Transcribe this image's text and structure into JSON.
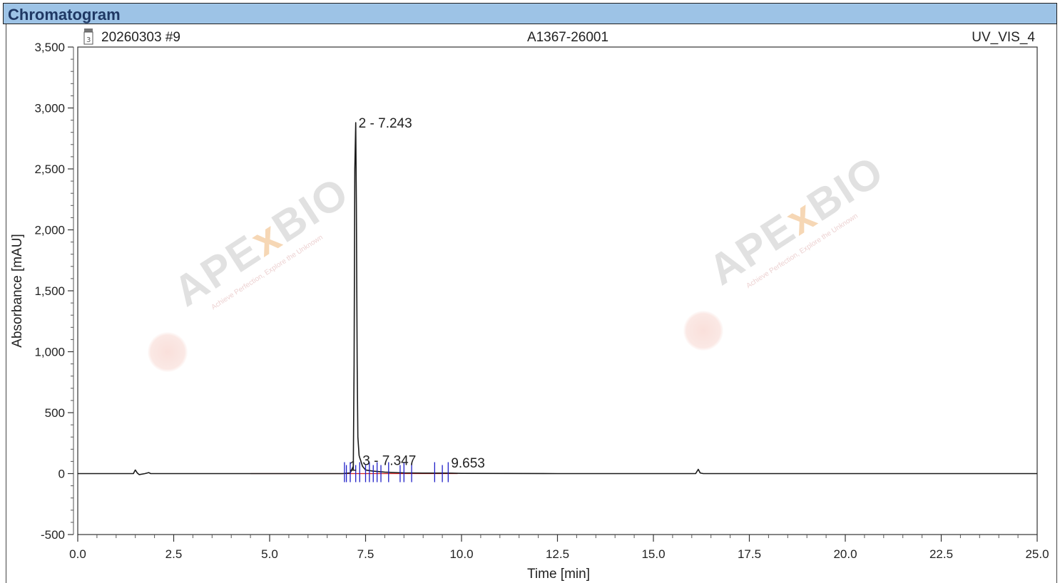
{
  "header": {
    "title": "Chromatogram"
  },
  "chart_info": {
    "injection": "20260303 #9",
    "sample": "A1367-26001",
    "channel": "UV_VIS_4",
    "page_icon": "document-icon"
  },
  "watermark": {
    "brand": "APE",
    "brand_x": "x",
    "brand_tail": "BIO",
    "tagline": "Achieve Perfection, Explore the Unknown"
  },
  "colors": {
    "title_bg": "#9dc3e6",
    "title_text": "#1f3864",
    "trace": "#1a1a1a",
    "peak_marker": "#1f1fc8",
    "baseline": "#d02020"
  },
  "chart_data": {
    "type": "line",
    "xlabel": "Time [min]",
    "ylabel": "Absorbance [mAU]",
    "xlim": [
      0.0,
      25.0
    ],
    "ylim": [
      -500,
      3500
    ],
    "xticks": [
      "0.0",
      "2.5",
      "5.0",
      "7.5",
      "10.0",
      "12.5",
      "15.0",
      "17.5",
      "20.0",
      "22.5",
      "25.0"
    ],
    "yticks": [
      "-500",
      "0",
      "500",
      "1,000",
      "1,500",
      "2,000",
      "2,500",
      "3,000",
      "3,500"
    ],
    "series": [
      {
        "x": [
          0.0,
          1.45,
          1.5,
          1.55,
          1.6,
          1.75,
          1.85,
          1.9,
          2.0,
          4.5,
          6.9,
          7.1,
          7.18,
          7.2,
          7.22,
          7.243,
          7.26,
          7.28,
          7.3,
          7.33,
          7.347,
          7.37,
          7.42,
          7.5,
          7.7,
          8.0,
          8.5,
          9.0,
          9.653,
          10.0,
          12.5,
          16.1,
          16.17,
          16.22,
          16.3,
          20.0,
          25.0
        ],
        "y": [
          0,
          0,
          30,
          5,
          -8,
          0,
          8,
          0,
          0,
          0,
          0,
          5,
          60,
          900,
          2500,
          2880,
          2200,
          900,
          300,
          150,
          130,
          110,
          60,
          30,
          20,
          12,
          6,
          4,
          4,
          2,
          0,
          0,
          35,
          5,
          0,
          0,
          0
        ]
      }
    ],
    "peak_labels": [
      {
        "text": "2 - 7.243",
        "x": 7.243,
        "y": 2880
      },
      {
        "text": "3 - 7.347",
        "x": 7.347,
        "y": 130
      },
      {
        "text": "1",
        "x": 7.0,
        "y": 0
      },
      {
        "text": "9.653",
        "x": 9.653,
        "y": 4
      }
    ]
  }
}
